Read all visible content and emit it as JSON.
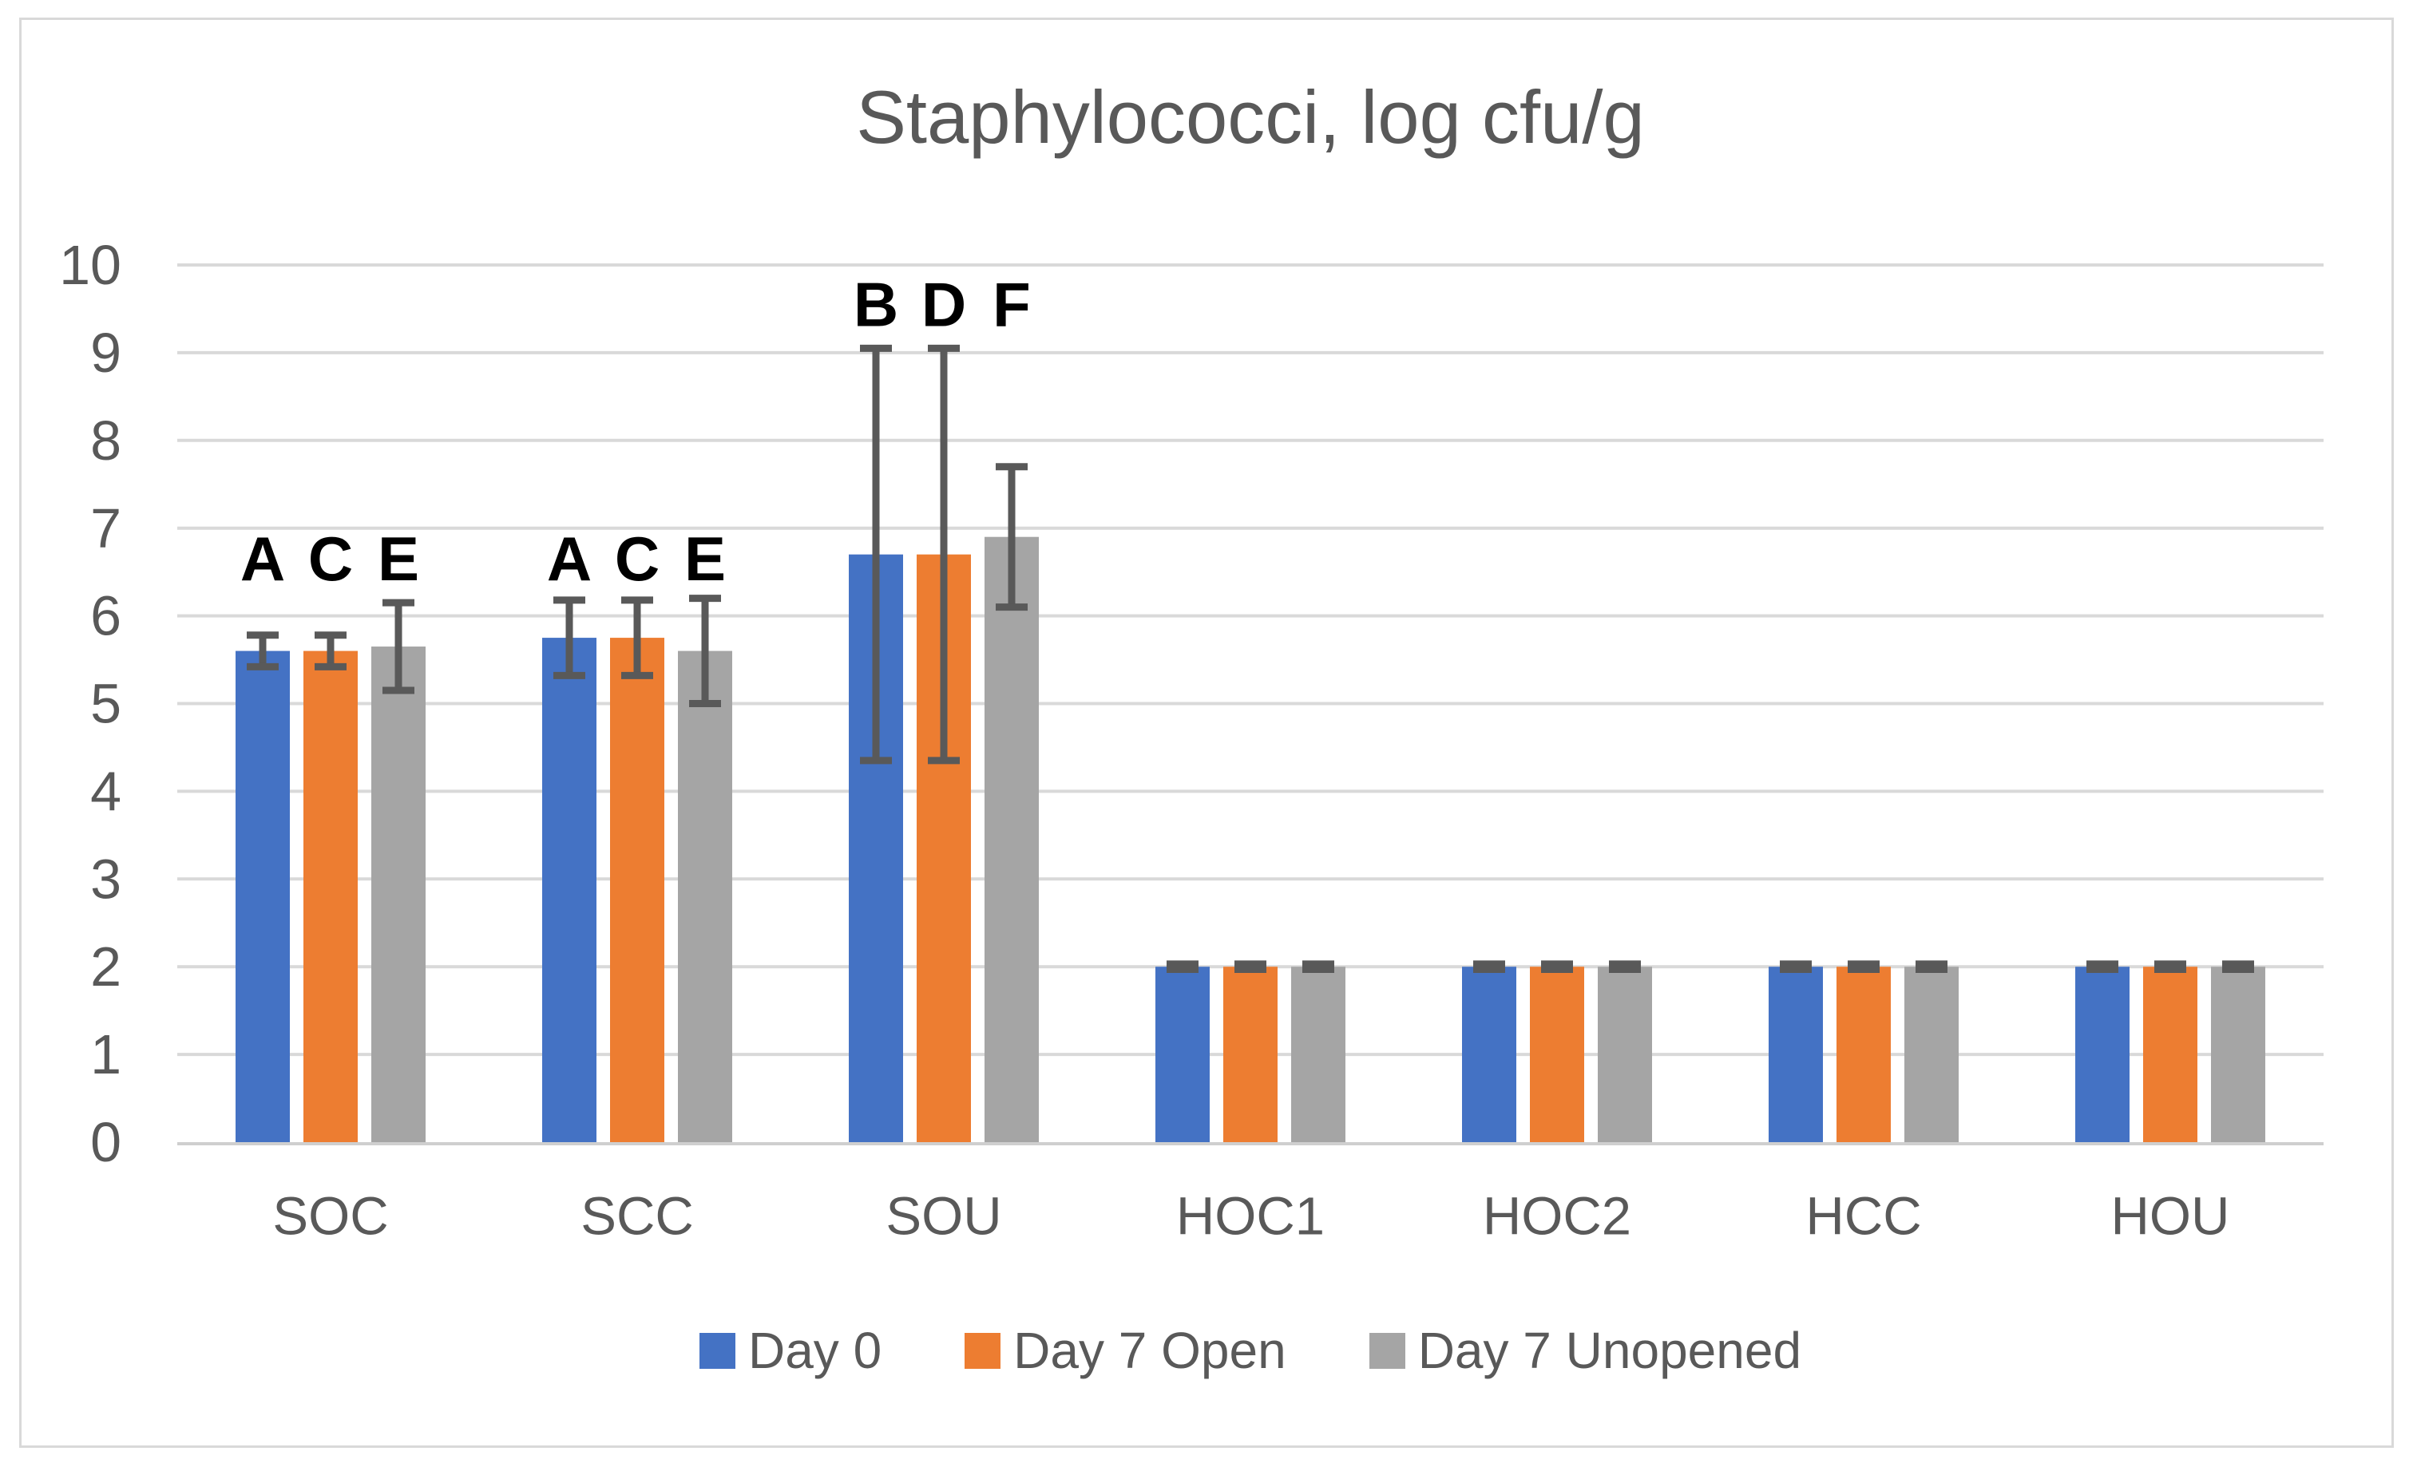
{
  "chart_data": {
    "type": "bar",
    "title": "Staphylococci, log cfu/g",
    "categories": [
      "SOC",
      "SCC",
      "SOU",
      "HOC1",
      "HOC2",
      "HCC",
      "HOU"
    ],
    "series": [
      {
        "name": "Day 0",
        "color": "#4472C4",
        "values": [
          5.6,
          5.75,
          6.7,
          2.0,
          2.0,
          2.0,
          2.0
        ],
        "error": [
          0.18,
          0.43,
          2.35,
          0.03,
          0.03,
          0.03,
          0.03
        ]
      },
      {
        "name": "Day 7 Open",
        "color": "#ED7D31",
        "values": [
          5.6,
          5.75,
          6.7,
          2.0,
          2.0,
          2.0,
          2.0
        ],
        "error": [
          0.18,
          0.43,
          2.35,
          0.03,
          0.03,
          0.03,
          0.03
        ]
      },
      {
        "name": "Day 7 Unopened",
        "color": "#A5A5A5",
        "values": [
          5.65,
          5.6,
          6.9,
          2.0,
          2.0,
          2.0,
          2.0
        ],
        "error": [
          0.5,
          0.6,
          0.8,
          0.03,
          0.03,
          0.03,
          0.03
        ]
      }
    ],
    "annotations": [
      {
        "category": "SOC",
        "letters": [
          "A",
          "C",
          "E"
        ],
        "y": 6.65
      },
      {
        "category": "SCC",
        "letters": [
          "A",
          "C",
          "E"
        ],
        "y": 6.65
      },
      {
        "category": "SOU",
        "letters": [
          "B",
          "D",
          "F"
        ],
        "y": 9.55
      }
    ],
    "yticks": [
      0,
      1,
      2,
      3,
      4,
      5,
      6,
      7,
      8,
      9,
      10
    ],
    "ylim": [
      0,
      10
    ],
    "xlabel": "",
    "ylabel": "",
    "grid": true,
    "legend_position": "bottom",
    "colors": {
      "grid": "#D9D9D9",
      "axis_line": "#CFCFCF",
      "text": "#595959",
      "error_bar": "#595959",
      "annotation": "#000000",
      "border": "#D9D9D9",
      "background": "#FFFFFF"
    }
  }
}
